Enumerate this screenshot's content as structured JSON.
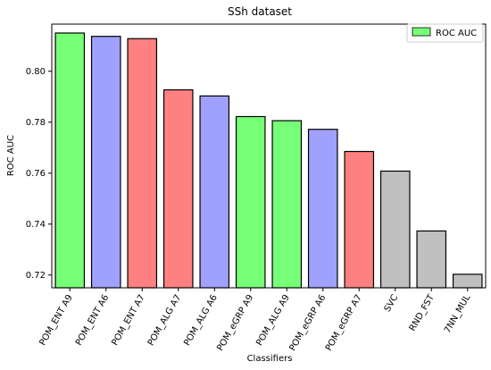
{
  "chart_data": {
    "type": "bar",
    "title": "SSh dataset",
    "xlabel": "Classifiers",
    "ylabel": "ROC AUC",
    "ylim": [
      0.715,
      0.8185
    ],
    "yticks": [
      0.72,
      0.74,
      0.76,
      0.78,
      0.8
    ],
    "ytick_labels": [
      "0.72",
      "0.74",
      "0.76",
      "0.78",
      "0.80"
    ],
    "categories": [
      "POM_ENT A9",
      "POM_ENT A6",
      "POM_ENT A7",
      "POM_ALG A7",
      "POM_ALG A6",
      "POM_eGRP A9",
      "POM_ALG A9",
      "POM_eGRP A6",
      "POM_eGRP A7",
      "SVC",
      "RND_FST",
      "7NN_MUL"
    ],
    "values": [
      0.815,
      0.8137,
      0.8128,
      0.7927,
      0.7903,
      0.7822,
      0.7806,
      0.7772,
      0.7685,
      0.7608,
      0.7373,
      0.7203
    ],
    "bar_colors": [
      "#77ff77",
      "#a0a0ff",
      "#ff8080",
      "#ff8080",
      "#a0a0ff",
      "#77ff77",
      "#77ff77",
      "#a0a0ff",
      "#ff8080",
      "#c0c0c0",
      "#c0c0c0",
      "#c0c0c0"
    ],
    "legend": {
      "label": "ROC AUC",
      "color": "#77ff77",
      "placement": "top-right"
    },
    "grid": false
  }
}
